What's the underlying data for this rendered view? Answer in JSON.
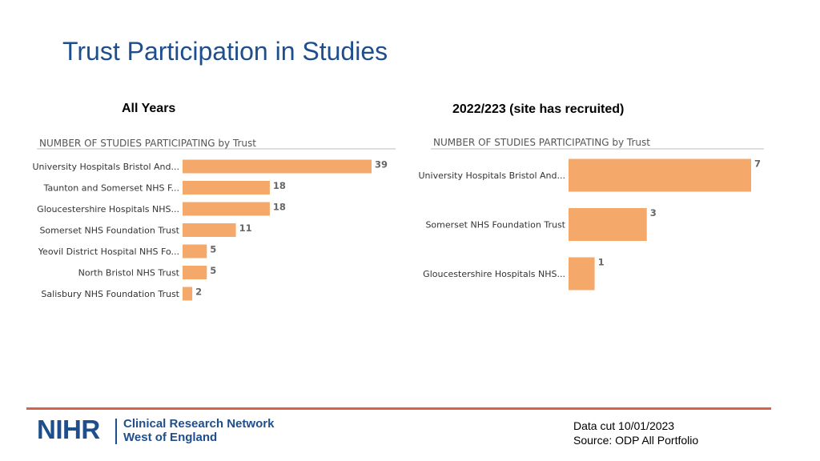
{
  "title": "Trust Participation in Studies",
  "chart_data": [
    {
      "type": "bar",
      "orientation": "horizontal",
      "subtitle": "All Years",
      "title": "NUMBER OF STUDIES PARTICIPATING by Trust",
      "categories": [
        "University Hospitals Bristol And...",
        "Taunton and Somerset NHS F...",
        "Gloucestershire Hospitals NHS...",
        "Somerset NHS Foundation Trust",
        "Yeovil District Hospital NHS Fo...",
        "North Bristol NHS Trust",
        "Salisbury NHS Foundation Trust"
      ],
      "values": [
        39,
        18,
        18,
        11,
        5,
        5,
        2
      ],
      "xlim": [
        0,
        39
      ],
      "bar_color": "#f4a96a",
      "grid": false
    },
    {
      "type": "bar",
      "orientation": "horizontal",
      "subtitle": "2022/223 (site has recruited)",
      "title": "NUMBER OF STUDIES PARTICIPATING by Trust",
      "categories": [
        "University Hospitals Bristol And...",
        "Somerset NHS Foundation Trust",
        "Gloucestershire Hospitals NHS..."
      ],
      "values": [
        7,
        3,
        1
      ],
      "xlim": [
        0,
        7
      ],
      "bar_color": "#f4a96a",
      "grid": false
    }
  ],
  "footer": {
    "logo_nihr": "NIHR",
    "logo_line1": "Clinical Research Network",
    "logo_line2": "West of England",
    "data_cut": "Data cut 10/01/2023",
    "source": "Source: ODP All Portfolio"
  },
  "colors": {
    "title": "#1f4e8c",
    "accent_line": "#d9604c",
    "bar": "#f4a96a"
  }
}
